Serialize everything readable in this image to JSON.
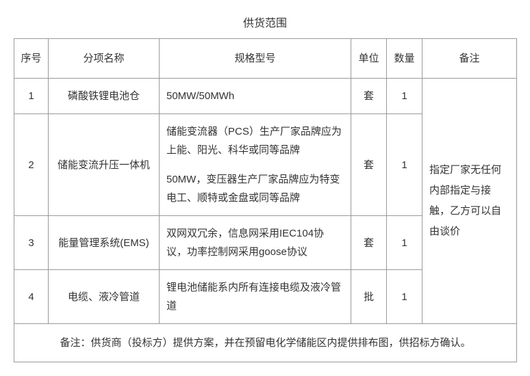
{
  "title": "供货范围",
  "columns": {
    "seq": "序号",
    "name": "分项名称",
    "spec": "规格型号",
    "unit": "单位",
    "qty": "数量",
    "remark": "备注"
  },
  "rows": [
    {
      "seq": "1",
      "name": "磷酸铁锂电池仓",
      "spec": "50MW/50MWh",
      "unit": "套",
      "qty": "1"
    },
    {
      "seq": "2",
      "name": "储能变流升压一体机",
      "spec_a": "储能变流器（PCS）生产厂家品牌应为上能、阳光、科华或同等品牌",
      "spec_b": "50MW，变压器生产厂家品牌应为特变电工、顺特或金盘或同等品牌",
      "unit": "套",
      "qty": "1"
    },
    {
      "seq": "3",
      "name": "能量管理系统(EMS)",
      "spec": "双网双冗余，信息网采用IEC104协议，功率控制网采用goose协议",
      "unit": "套",
      "qty": "1"
    },
    {
      "seq": "4",
      "name": "电缆、液冷管道",
      "spec": "锂电池储能系内所有连接电缆及液冷管道",
      "unit": "批",
      "qty": "1"
    }
  ],
  "merged_remark": "指定厂家无任何内部指定与接触，乙方可以自由谈价",
  "footer_note": "备注：供货商（投标方）提供方案，并在预留电化学储能区内提供排布图，供招标方确认。"
}
